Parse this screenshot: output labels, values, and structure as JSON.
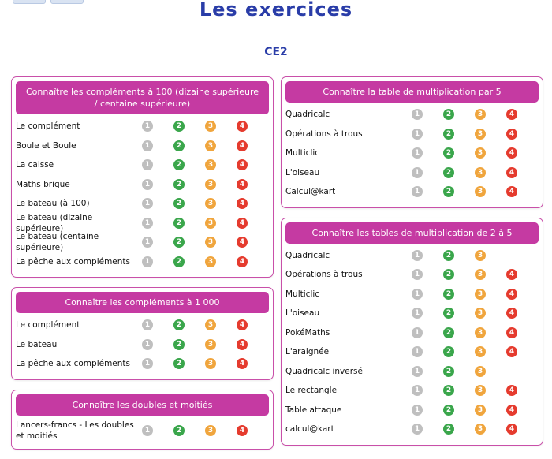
{
  "page_title": "Les exercices",
  "level": "CE2",
  "badge_labels": [
    "1",
    "2",
    "3",
    "4"
  ],
  "colors": {
    "title": "#2a3da8",
    "header": "#c53aa2",
    "border": "#c94fa9",
    "level1": "#bfbfbf",
    "level2": "#3aa64b",
    "level3": "#f0a53d",
    "level4": "#e53b2e"
  },
  "left_column": [
    {
      "title": "Connaître les compléments à 100 (dizaine supérieure / centaine supérieure)",
      "items": [
        {
          "label": "Le complément",
          "levels": 4
        },
        {
          "label": "Boule et Boule",
          "levels": 4
        },
        {
          "label": "La caisse",
          "levels": 4
        },
        {
          "label": "Maths brique",
          "levels": 4
        },
        {
          "label": "Le bateau (à 100)",
          "levels": 4
        },
        {
          "label": "Le bateau (dizaine supérieure)",
          "levels": 4
        },
        {
          "label": "Le bateau (centaine supérieure)",
          "levels": 4
        },
        {
          "label": "La pêche aux compléments",
          "levels": 4
        }
      ]
    },
    {
      "title": "Connaître les compléments à 1 000",
      "items": [
        {
          "label": "Le complément",
          "levels": 4
        },
        {
          "label": "Le bateau",
          "levels": 4
        },
        {
          "label": "La pêche aux compléments",
          "levels": 4
        }
      ]
    },
    {
      "title": "Connaître les doubles et moitiés",
      "items": [
        {
          "label": "Lancers-francs - Les doubles et moitiés",
          "levels": 4
        }
      ]
    }
  ],
  "right_column": [
    {
      "title": "Connaître la table de multiplication par 5",
      "items": [
        {
          "label": "Quadricalc",
          "levels": 4
        },
        {
          "label": "Opérations à trous",
          "levels": 4
        },
        {
          "label": "Multiclic",
          "levels": 4
        },
        {
          "label": "L'oiseau",
          "levels": 4
        },
        {
          "label": "Calcul@kart",
          "levels": 4
        }
      ]
    },
    {
      "title": "Connaître les tables de multiplication de 2 à 5",
      "items": [
        {
          "label": "Quadricalc",
          "levels": 3
        },
        {
          "label": "Opérations à trous",
          "levels": 4
        },
        {
          "label": "Multiclic",
          "levels": 4
        },
        {
          "label": "L'oiseau",
          "levels": 4
        },
        {
          "label": "PokéMaths",
          "levels": 4
        },
        {
          "label": "L'araignée",
          "levels": 4
        },
        {
          "label": "Quadricalc inversé",
          "levels": 3
        },
        {
          "label": "Le rectangle",
          "levels": 4
        },
        {
          "label": "Table attaque",
          "levels": 4
        },
        {
          "label": "calcul@kart",
          "levels": 4
        }
      ]
    }
  ]
}
